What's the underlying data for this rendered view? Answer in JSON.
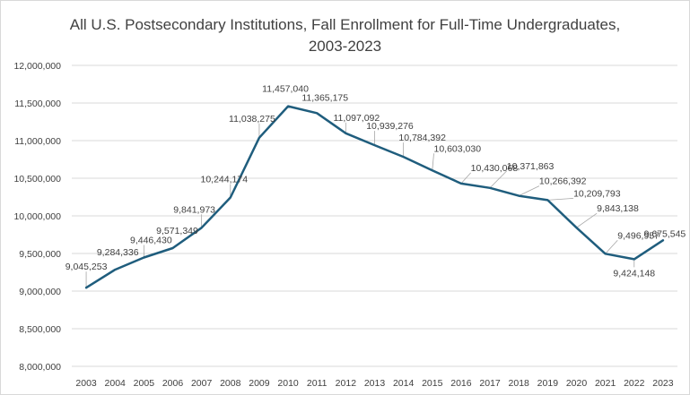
{
  "chart_data": {
    "type": "line",
    "title_line1": "All U.S. Postsecondary Institutions, Fall Enrollment for Full-Time Undergraduates,",
    "title_line2": "2003-2023",
    "xlabel": "",
    "ylabel": "",
    "ylim": [
      8000000,
      12000000
    ],
    "y_ticks": [
      8000000,
      8500000,
      9000000,
      9500000,
      10000000,
      10500000,
      11000000,
      11500000,
      12000000
    ],
    "y_tick_labels": [
      "8,000,000",
      "8,500,000",
      "9,000,000",
      "9,500,000",
      "10,000,000",
      "10,500,000",
      "11,000,000",
      "11,500,000",
      "12,000,000"
    ],
    "categories": [
      "2003",
      "2004",
      "2005",
      "2006",
      "2007",
      "2008",
      "2009",
      "2010",
      "2011",
      "2012",
      "2013",
      "2014",
      "2015",
      "2016",
      "2017",
      "2018",
      "2019",
      "2020",
      "2021",
      "2022",
      "2023"
    ],
    "values": [
      9045253,
      9284336,
      9446430,
      9571349,
      9841973,
      10244174,
      11038275,
      11457040,
      11365175,
      11097092,
      10939276,
      10784392,
      10603030,
      10430068,
      10371863,
      10266392,
      10209793,
      9843138,
      9496957,
      9424148,
      9675545
    ],
    "value_labels": [
      "9,045,253",
      "9,284,336",
      "9,446,430",
      "9,571,349",
      "9,841,973",
      "10,244,174",
      "11,038,275",
      "11,457,040",
      "11,365,175",
      "11,097,092",
      "10,939,276",
      "10,784,392",
      "10,603,030",
      "10,430,068",
      "10,371,863",
      "10,266,392",
      "10,209,793",
      "9,843,138",
      "9,496,957",
      "9,424,148",
      "9,675,545"
    ],
    "grid": true,
    "legend": "none",
    "line_color": "#1f5d7d",
    "grid_color": "#d9d9d9",
    "text_color": "#404040"
  }
}
